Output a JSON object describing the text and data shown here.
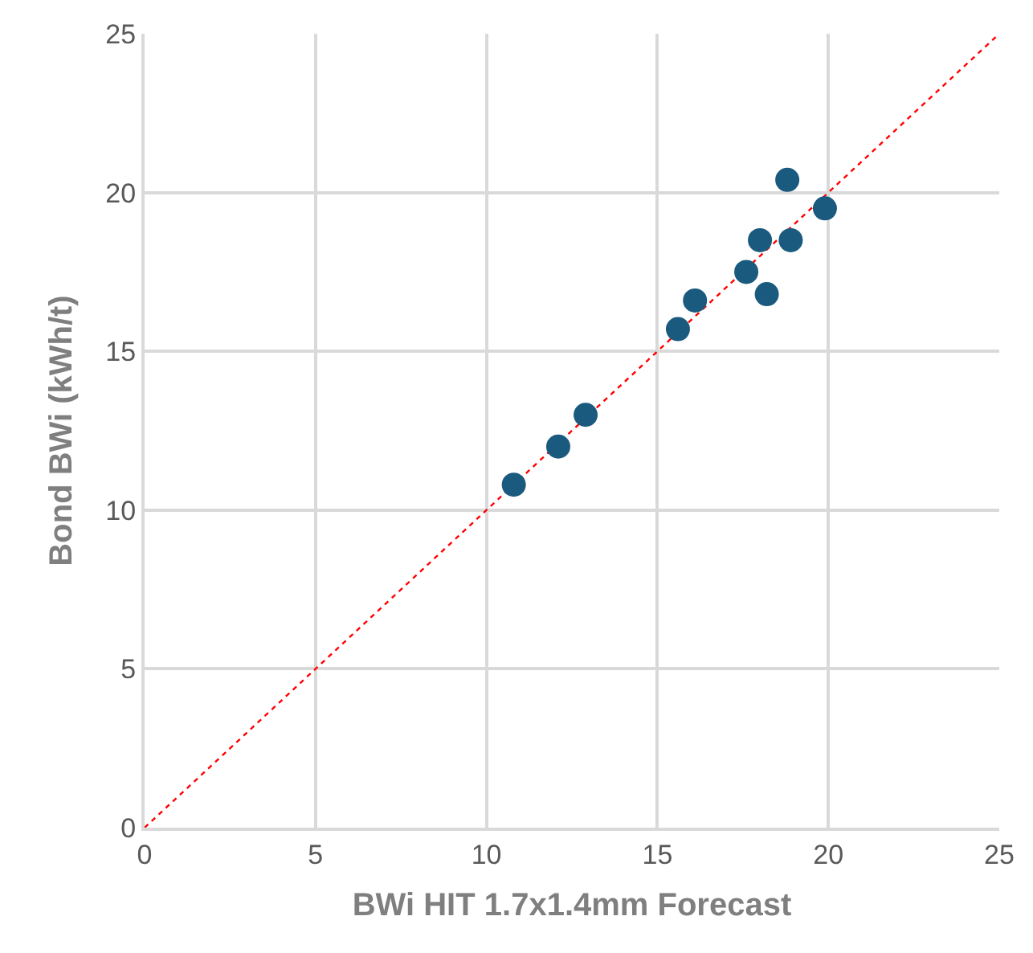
{
  "chart_data": {
    "type": "scatter",
    "xlabel": "BWi HIT 1.7x1.4mm Forecast",
    "ylabel": "Bond BWi (kWh/t)",
    "xlim": [
      0,
      25
    ],
    "ylim": [
      0,
      25
    ],
    "xticks": [
      0,
      5,
      10,
      15,
      20,
      25
    ],
    "yticks": [
      0,
      5,
      10,
      15,
      20,
      25
    ],
    "grid": true,
    "x": [
      10.8,
      12.1,
      12.9,
      15.6,
      16.1,
      17.6,
      18.0,
      18.2,
      18.9,
      18.8,
      19.9
    ],
    "series": [
      {
        "color": "#1a5a7e",
        "marker": "circle",
        "values": [
          10.8,
          12.0,
          13.0,
          15.7,
          16.6,
          17.5,
          18.5,
          16.8,
          18.5,
          20.4,
          19.5
        ]
      },
      {
        "type": "line",
        "color": "#ff0000",
        "line_style": "dotted",
        "marker": "none",
        "x": [
          0,
          25
        ],
        "values": [
          0,
          25
        ]
      }
    ]
  }
}
